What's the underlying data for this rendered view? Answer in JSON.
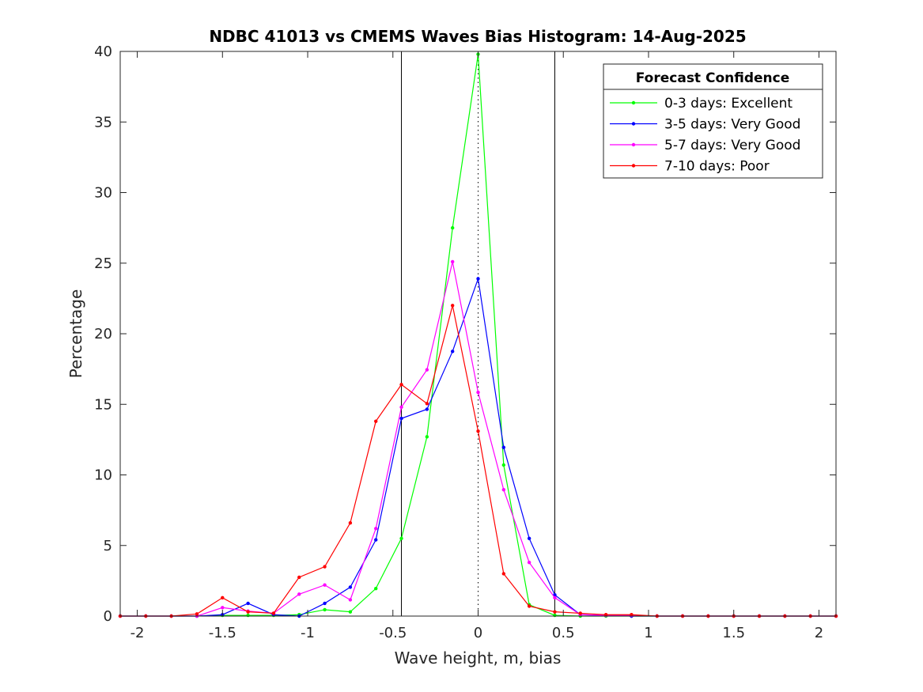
{
  "chart_data": {
    "type": "line",
    "title": "NDBC 41013 vs CMEMS Waves Bias Histogram: 14-Aug-2025",
    "xlabel": "Wave height, m, bias",
    "ylabel": "Percentage",
    "xlim": [
      -2.1,
      2.1
    ],
    "ylim": [
      0,
      40
    ],
    "xticks": [
      -2,
      -1.5,
      -1,
      -0.5,
      0,
      0.5,
      1,
      1.5,
      2
    ],
    "xtick_labels": [
      "-2",
      "-1.5",
      "-1",
      "-0.5",
      "0",
      "0.5",
      "1",
      "1.5",
      "2"
    ],
    "yticks": [
      0,
      5,
      10,
      15,
      20,
      25,
      30,
      35,
      40
    ],
    "ytick_labels": [
      "0",
      "5",
      "10",
      "15",
      "20",
      "25",
      "30",
      "35",
      "40"
    ],
    "grid": false,
    "legend_title": "Forecast Confidence",
    "legend_position": "top-right",
    "vertical_lines": [
      {
        "x": -0.45,
        "style": "solid"
      },
      {
        "x": 0.45,
        "style": "solid"
      },
      {
        "x": 0,
        "style": "dotted"
      }
    ],
    "x": [
      -2.1,
      -1.95,
      -1.8,
      -1.65,
      -1.5,
      -1.35,
      -1.2,
      -1.05,
      -0.9,
      -0.75,
      -0.6,
      -0.45,
      -0.3,
      -0.15,
      0,
      0.15,
      0.3,
      0.45,
      0.6,
      0.75,
      0.9,
      1.05,
      1.2,
      1.35,
      1.5,
      1.65,
      1.8,
      1.95,
      2.1
    ],
    "series": [
      {
        "name": "0-3 days: Excellent",
        "color": "#00ff00",
        "values": [
          0,
          0,
          0,
          0,
          0.05,
          0.05,
          0.05,
          0.1,
          0.45,
          0.3,
          1.95,
          5.5,
          12.7,
          27.5,
          39.8,
          10.7,
          0.8,
          0.05,
          0,
          0,
          0,
          0,
          0,
          0,
          0,
          0,
          0,
          0,
          0
        ]
      },
      {
        "name": "3-5 days: Very Good",
        "color": "#0000ff",
        "values": [
          0,
          0,
          0,
          0,
          0.1,
          0.9,
          0.1,
          0,
          0.9,
          2.05,
          5.4,
          14,
          14.65,
          18.75,
          23.9,
          11.95,
          5.5,
          1.5,
          0.1,
          0.05,
          0,
          0,
          0,
          0,
          0,
          0,
          0,
          0,
          0
        ]
      },
      {
        "name": "5-7 days: Very Good",
        "color": "#ff00ff",
        "values": [
          0,
          0,
          0,
          0,
          0.6,
          0.35,
          0.2,
          1.55,
          2.2,
          1.15,
          6.2,
          14.8,
          17.45,
          25.1,
          15.85,
          8.95,
          3.8,
          1.3,
          0.1,
          0.05,
          0.05,
          0,
          0,
          0,
          0,
          0,
          0,
          0,
          0
        ]
      },
      {
        "name": "7-10 days: Poor",
        "color": "#ff0000",
        "values": [
          0,
          0,
          0,
          0.15,
          1.3,
          0.3,
          0.2,
          2.75,
          3.5,
          6.6,
          13.8,
          16.4,
          15.05,
          22,
          13.1,
          3,
          0.7,
          0.3,
          0.2,
          0.1,
          0.1,
          0,
          0,
          0,
          0,
          0,
          0,
          0,
          0
        ]
      }
    ]
  }
}
